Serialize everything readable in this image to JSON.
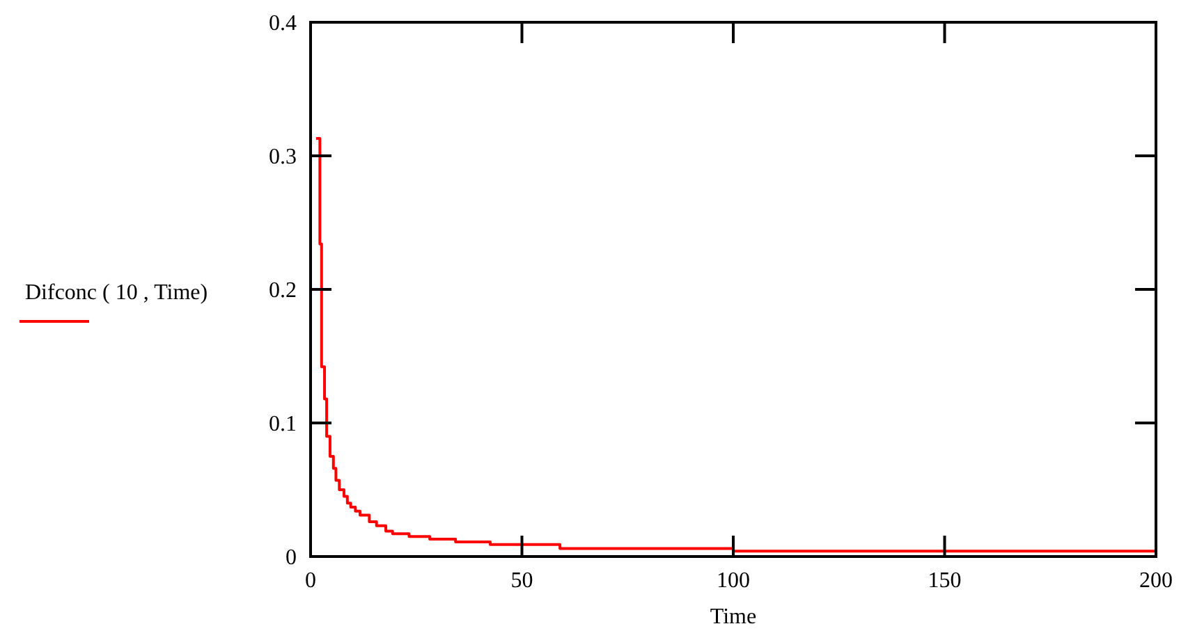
{
  "chart_data": {
    "type": "step",
    "xlabel": "Time",
    "legend": "left",
    "x": [
      1.3,
      2.2,
      2.6,
      3.3,
      3.8,
      4.6,
      5.4,
      6,
      6.8,
      7.9,
      8.7,
      9.5,
      10.6,
      11.7,
      13.9,
      15.6,
      17.8,
      19.4,
      23.3,
      28.2,
      34.3,
      42.5,
      59,
      100,
      200
    ],
    "series": [
      {
        "name": "Difconc ( 10 , Time)",
        "color": "#ff0000",
        "values": [
          0.313,
          0.234,
          0.142,
          0.118,
          0.09,
          0.075,
          0.066,
          0.057,
          0.05,
          0.045,
          0.04,
          0.037,
          0.034,
          0.031,
          0.026,
          0.023,
          0.019,
          0.017,
          0.015,
          0.013,
          0.011,
          0.009,
          0.006,
          0.004,
          0.002
        ]
      }
    ],
    "xlim": [
      0,
      200
    ],
    "xticks": [
      0,
      50,
      100,
      150,
      200
    ],
    "ylim": [
      0,
      0.4
    ],
    "yticks": [
      0,
      0.1,
      0.2,
      0.3,
      0.4
    ],
    "grid": false
  }
}
